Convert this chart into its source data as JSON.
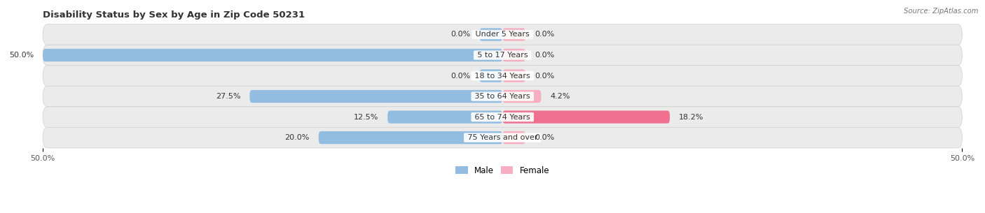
{
  "title": "Disability Status by Sex by Age in Zip Code 50231",
  "source": "Source: ZipAtlas.com",
  "categories": [
    "Under 5 Years",
    "5 to 17 Years",
    "18 to 34 Years",
    "35 to 64 Years",
    "65 to 74 Years",
    "75 Years and over"
  ],
  "male_values": [
    0.0,
    50.0,
    0.0,
    27.5,
    12.5,
    20.0
  ],
  "female_values": [
    0.0,
    0.0,
    0.0,
    4.2,
    18.2,
    0.0
  ],
  "male_color": "#92bde0",
  "female_color_normal": "#f5afc0",
  "female_color_hot": "#f07090",
  "female_hot_index": 4,
  "row_bg_color": "#ebebeb",
  "row_bg_alt_color": "#f5f5f5",
  "x_min": -50.0,
  "x_max": 50.0,
  "x_tick_labels": [
    "50.0%",
    "50.0%"
  ],
  "title_fontsize": 9.5,
  "label_fontsize": 8.0,
  "tick_fontsize": 8.0,
  "bar_height": 0.62,
  "min_bar_width": 2.5,
  "figsize": [
    14.06,
    3.05
  ],
  "dpi": 100
}
